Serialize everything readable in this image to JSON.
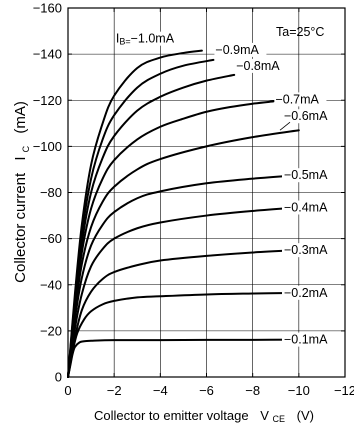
{
  "chart_data": {
    "type": "line",
    "title": "",
    "annotation": "Ta=25°C",
    "xlabel": {
      "text": "Collector to emitter voltage",
      "symbol": "V",
      "subscript": "CE",
      "unit": "(V)"
    },
    "ylabel": {
      "text": "Collector current",
      "symbol": "I",
      "subscript": "C",
      "unit": "(mA)"
    },
    "xlim": [
      0,
      -12
    ],
    "ylim": [
      0,
      -160
    ],
    "xticks": [
      0,
      -2,
      -4,
      -6,
      -8,
      -10,
      -12
    ],
    "yticks": [
      0,
      -20,
      -40,
      -60,
      -80,
      -100,
      -120,
      -140,
      -160
    ],
    "xtick_labels": [
      "0",
      "−2",
      "−4",
      "−6",
      "−8",
      "−10",
      "−12"
    ],
    "ytick_labels": [
      "0",
      "−20",
      "−40",
      "−60",
      "−80",
      "−100",
      "−120",
      "−140",
      "−160"
    ],
    "grid": true,
    "series": [
      {
        "name": "−0.1mA",
        "label_prefix": "",
        "x": [
          0,
          -0.1,
          -0.2,
          -0.3,
          -0.5,
          -0.7,
          -1.0,
          -2,
          -4,
          -6,
          -8,
          -10
        ],
        "y": [
          0,
          -5,
          -10,
          -13,
          -15,
          -15.5,
          -15.7,
          -16,
          -16,
          -16.1,
          -16.1,
          -16.2
        ]
      },
      {
        "name": "−0.2mA",
        "label_prefix": "",
        "x": [
          0,
          -0.2,
          -0.4,
          -0.7,
          -1.0,
          -1.5,
          -2,
          -3,
          -4,
          -6,
          -8,
          -10
        ],
        "y": [
          0,
          -11,
          -19,
          -25,
          -28.5,
          -31.5,
          -33,
          -34.5,
          -35,
          -35.8,
          -36.2,
          -36.5
        ]
      },
      {
        "name": "−0.3mA",
        "label_prefix": "",
        "x": [
          0,
          -0.3,
          -0.6,
          -1.0,
          -1.5,
          -2,
          -3,
          -4,
          -6,
          -8,
          -10
        ],
        "y": [
          0,
          -17,
          -29,
          -37,
          -42.5,
          -45.5,
          -48.5,
          -50.5,
          -52.5,
          -54,
          -55
        ]
      },
      {
        "name": "−0.4mA",
        "label_prefix": "",
        "x": [
          0,
          -0.3,
          -0.6,
          -1.0,
          -1.5,
          -2,
          -3,
          -4,
          -6,
          -8,
          -10
        ],
        "y": [
          0,
          -21,
          -36,
          -48,
          -55.5,
          -60,
          -64.5,
          -67,
          -70,
          -72,
          -73.5
        ]
      },
      {
        "name": "−0.5mA",
        "label_prefix": "",
        "x": [
          0,
          -0.3,
          -0.6,
          -1.0,
          -1.5,
          -2,
          -3,
          -4,
          -6,
          -8,
          -10
        ],
        "y": [
          0,
          -25,
          -43,
          -57,
          -66,
          -71.5,
          -77.5,
          -80.5,
          -84,
          -86,
          -87.5
        ]
      },
      {
        "name": "−0.6mA",
        "label_prefix": "",
        "x": [
          0,
          -0.3,
          -0.6,
          -1.0,
          -1.5,
          -2,
          -3,
          -4,
          -6,
          -8,
          -10
        ],
        "y": [
          0,
          -28,
          -49,
          -65,
          -76,
          -82.5,
          -90,
          -94.5,
          -100,
          -104,
          -107
        ]
      },
      {
        "name": "−0.7mA",
        "label_prefix": "",
        "x": [
          0,
          -0.3,
          -0.6,
          -1.0,
          -1.5,
          -2,
          -3,
          -4,
          -5,
          -6,
          -7,
          -8,
          -8.9
        ],
        "y": [
          0,
          -30,
          -54,
          -73,
          -86,
          -94,
          -103,
          -108.5,
          -112,
          -115,
          -117,
          -118.5,
          -119.5
        ]
      },
      {
        "name": "−0.8mA",
        "label_prefix": "",
        "x": [
          0,
          -0.3,
          -0.6,
          -1.0,
          -1.5,
          -2,
          -3,
          -4,
          -5,
          -6,
          -7.2
        ],
        "y": [
          0,
          -32,
          -58,
          -80,
          -95,
          -104.5,
          -115.5,
          -121.5,
          -125.5,
          -128.5,
          -131
        ]
      },
      {
        "name": "−0.9mA",
        "label_prefix": "",
        "x": [
          0,
          -0.3,
          -0.6,
          -1.0,
          -1.5,
          -2,
          -3,
          -4,
          -5,
          -6.3
        ],
        "y": [
          0,
          -34,
          -62,
          -86,
          -103,
          -113.5,
          -125.5,
          -131.5,
          -135,
          -137.5
        ]
      },
      {
        "name": "−1.0mA",
        "label_prefix": "I",
        "label_sub": "B",
        "x": [
          0,
          -0.3,
          -0.6,
          -1.0,
          -1.5,
          -2,
          -3,
          -4,
          -5,
          -5.8
        ],
        "y": [
          0,
          -36,
          -66,
          -92,
          -110,
          -122,
          -134,
          -138.5,
          -140.5,
          -141.5
        ]
      }
    ]
  }
}
